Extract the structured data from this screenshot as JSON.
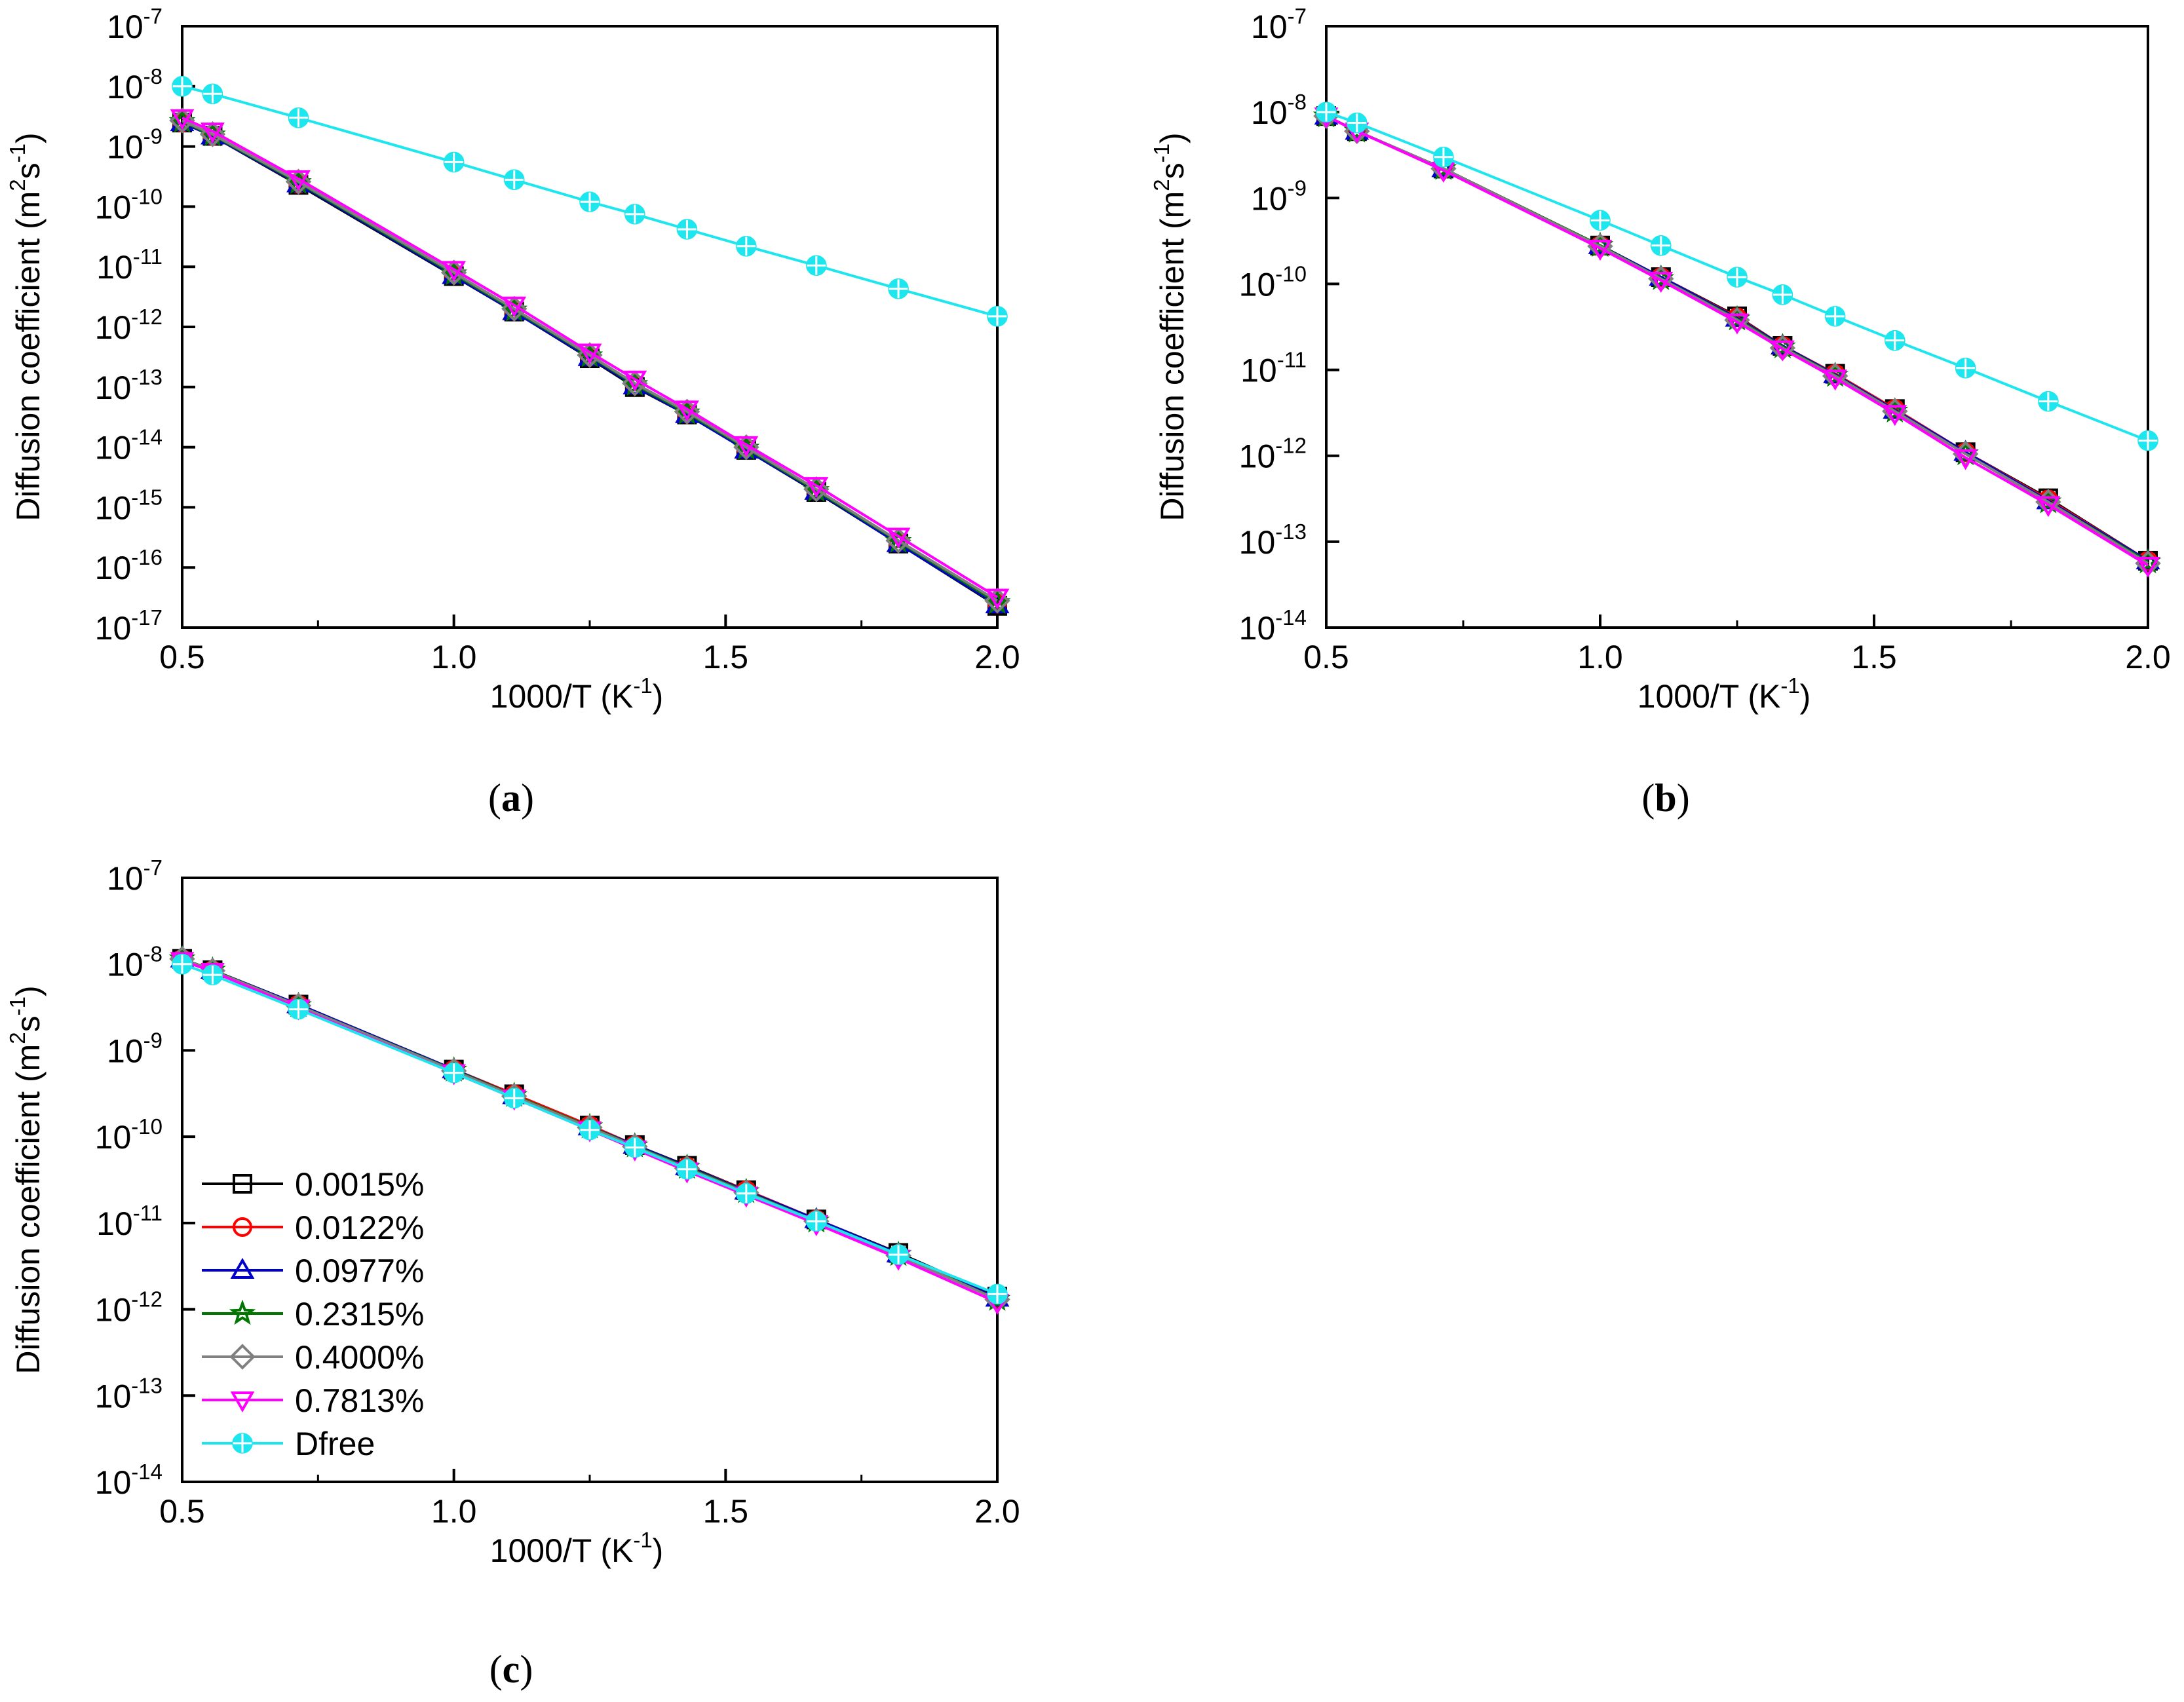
{
  "figure": {
    "legend_entries": [
      {
        "label": "0.0015%",
        "color": "#000000",
        "marker": "square"
      },
      {
        "label": "0.0122%",
        "color": "#ff0000",
        "marker": "circle"
      },
      {
        "label": "0.0977%",
        "color": "#0000cc",
        "marker": "triangle-up"
      },
      {
        "label": "0.2315%",
        "color": "#007700",
        "marker": "star"
      },
      {
        "label": "0.4000%",
        "color": "#808080",
        "marker": "diamond"
      },
      {
        "label": "0.7813%",
        "color": "#ff00ff",
        "marker": "triangle-down"
      },
      {
        "label": "Dfree",
        "color": "#1ee6ee",
        "marker": "crossed-circle"
      }
    ]
  },
  "chart_data": [
    {
      "type": "line",
      "panel_label": "a",
      "xlabel": "1000/T (K",
      "xlabel_sup": "-1",
      "xlabel_end": ")",
      "ylabel": "Diffusion coefficient (m",
      "ylabel_sup1": "2",
      "ylabel_mid": "s",
      "ylabel_sup2": "-1",
      "ylabel_end": ")",
      "xlim": [
        0.5,
        2.0
      ],
      "xticks": [
        "0.5",
        "1.0",
        "1.5",
        "2.0"
      ],
      "ylim_log10": [
        -17,
        -7
      ],
      "yscale": "log",
      "legend": false,
      "x": [
        0.5,
        0.556,
        0.714,
        1.0,
        1.111,
        1.25,
        1.333,
        1.429,
        1.538,
        1.667,
        1.818,
        2.0
      ],
      "series": [
        {
          "name": "0.0015%",
          "values": [
            2.5e-09,
            1.5e-09,
            2.3e-10,
            7e-12,
            1.8e-12,
            3e-13,
            1e-13,
            3.5e-14,
            9e-15,
            1.8e-15,
            2.5e-16,
            2.3e-17
          ]
        },
        {
          "name": "0.0122%",
          "values": [
            2.5e-09,
            1.5e-09,
            2.4e-10,
            7.5e-12,
            1.9e-12,
            3.2e-13,
            1.1e-13,
            3.6e-14,
            9.5e-15,
            1.9e-15,
            2.6e-16,
            2.5e-17
          ]
        },
        {
          "name": "0.0977%",
          "values": [
            2.5e-09,
            1.5e-09,
            2.4e-10,
            7.2e-12,
            1.8e-12,
            3.1e-13,
            1.05e-13,
            3.5e-14,
            9e-15,
            1.85e-15,
            2.5e-16,
            2.4e-17
          ]
        },
        {
          "name": "0.2315%",
          "values": [
            2.6e-09,
            1.55e-09,
            2.5e-10,
            7.6e-12,
            1.9e-12,
            3.3e-13,
            1.1e-13,
            3.7e-14,
            9.6e-15,
            1.9e-15,
            2.7e-16,
            2.6e-17
          ]
        },
        {
          "name": "0.4000%",
          "values": [
            2.7e-09,
            1.6e-09,
            2.6e-10,
            8e-12,
            2e-12,
            3.4e-13,
            1.15e-13,
            3.9e-14,
            1e-14,
            2e-15,
            2.8e-16,
            2.8e-17
          ]
        },
        {
          "name": "0.7813%",
          "values": [
            3e-09,
            1.8e-09,
            2.9e-10,
            9e-12,
            2.3e-12,
            3.8e-13,
            1.35e-13,
            4.3e-14,
            1.1e-14,
            2.3e-15,
            3.3e-16,
            3.2e-17
          ]
        },
        {
          "name": "Dfree",
          "values": [
            1e-08,
            7.5e-09,
            3e-09,
            5.5e-10,
            2.8e-10,
            1.2e-10,
            7.5e-11,
            4.2e-11,
            2.2e-11,
            1.05e-11,
            4.3e-12,
            1.5e-12
          ]
        }
      ]
    },
    {
      "type": "line",
      "panel_label": "b",
      "xlabel": "1000/T (K",
      "xlabel_sup": "-1",
      "xlabel_end": ")",
      "ylabel": "Diffusion coefficient (m",
      "ylabel_sup1": "2",
      "ylabel_mid": "s",
      "ylabel_sup2": "-1",
      "ylabel_end": ")",
      "xlim": [
        0.5,
        2.0
      ],
      "xticks": [
        "0.5",
        "1.0",
        "1.5",
        "2.0"
      ],
      "ylim_log10": [
        -14,
        -7
      ],
      "yscale": "log",
      "legend": false,
      "x": [
        0.5,
        0.556,
        0.714,
        1.0,
        1.111,
        1.25,
        1.333,
        1.429,
        1.538,
        1.667,
        1.818,
        2.0
      ],
      "series": [
        {
          "name": "0.0015%",
          "values": [
            9e-09,
            6e-09,
            2.2e-09,
            2.8e-10,
            1.2e-10,
            4.2e-11,
            1.9e-11,
            9e-12,
            3.5e-12,
            1.1e-12,
            3.2e-13,
            6e-14
          ]
        },
        {
          "name": "0.0122%",
          "values": [
            9e-09,
            6e-09,
            2.2e-09,
            2.8e-10,
            1.2e-10,
            4.1e-11,
            1.9e-11,
            9e-12,
            3.5e-12,
            1.1e-12,
            3.1e-13,
            6e-14
          ]
        },
        {
          "name": "0.0977%",
          "values": [
            9e-09,
            6e-09,
            2.2e-09,
            2.8e-10,
            1.2e-10,
            4e-11,
            1.9e-11,
            8.8e-12,
            3.4e-12,
            1.1e-12,
            3e-13,
            6e-14
          ]
        },
        {
          "name": "0.2315%",
          "values": [
            9e-09,
            6e-09,
            2.2e-09,
            2.8e-10,
            1.15e-10,
            3.9e-11,
            1.85e-11,
            8.6e-12,
            3.3e-12,
            1.05e-12,
            2.9e-13,
            5.8e-14
          ]
        },
        {
          "name": "0.4000%",
          "values": [
            9e-09,
            6e-09,
            2.2e-09,
            2.75e-10,
            1.15e-10,
            3.8e-11,
            1.8e-11,
            8.5e-12,
            3.3e-12,
            1.05e-12,
            2.9e-13,
            5.6e-14
          ]
        },
        {
          "name": "0.7813%",
          "values": [
            9e-09,
            6e-09,
            2.1e-09,
            2.6e-10,
            1.1e-10,
            3.6e-11,
            1.75e-11,
            8e-12,
            3.1e-12,
            9.5e-13,
            2.7e-13,
            5.3e-14
          ]
        },
        {
          "name": "Dfree",
          "values": [
            1e-08,
            7.5e-09,
            3e-09,
            5.5e-10,
            2.8e-10,
            1.2e-10,
            7.5e-11,
            4.2e-11,
            2.2e-11,
            1.05e-11,
            4.3e-12,
            1.5e-12
          ]
        }
      ]
    },
    {
      "type": "line",
      "panel_label": "c",
      "xlabel": "1000/T (K",
      "xlabel_sup": "-1",
      "xlabel_end": ")",
      "ylabel": "Diffusion coefficient (m",
      "ylabel_sup1": "2",
      "ylabel_mid": "s",
      "ylabel_sup2": "-1",
      "ylabel_end": ")",
      "xlim": [
        0.5,
        2.0
      ],
      "xticks": [
        "0.5",
        "1.0",
        "1.5",
        "2.0"
      ],
      "ylim_log10": [
        -14,
        -7
      ],
      "yscale": "log",
      "legend": true,
      "x": [
        0.5,
        0.556,
        0.714,
        1.0,
        1.111,
        1.25,
        1.333,
        1.429,
        1.538,
        1.667,
        1.818,
        2.0
      ],
      "series": [
        {
          "name": "0.0015%",
          "values": [
            1.15e-08,
            8.5e-09,
            3.4e-09,
            6e-10,
            3.1e-10,
            1.35e-10,
            8e-11,
            4.6e-11,
            2.4e-11,
            1.1e-11,
            4.5e-12,
            1.4e-12
          ]
        },
        {
          "name": "0.0122%",
          "values": [
            1.15e-08,
            8.5e-09,
            3.4e-09,
            6e-10,
            3.1e-10,
            1.35e-10,
            8e-11,
            4.5e-11,
            2.4e-11,
            1.1e-11,
            4.4e-12,
            1.35e-12
          ]
        },
        {
          "name": "0.0977%",
          "values": [
            1.15e-08,
            8.5e-09,
            3.4e-09,
            6e-10,
            3e-10,
            1.3e-10,
            8e-11,
            4.5e-11,
            2.35e-11,
            1.1e-11,
            4.4e-12,
            1.35e-12
          ]
        },
        {
          "name": "0.2315%",
          "values": [
            1.15e-08,
            8.5e-09,
            3.3e-09,
            5.9e-10,
            3e-10,
            1.3e-10,
            7.8e-11,
            4.4e-11,
            2.3e-11,
            1.05e-11,
            4.3e-12,
            1.3e-12
          ]
        },
        {
          "name": "0.4000%",
          "values": [
            1.15e-08,
            8.4e-09,
            3.3e-09,
            5.8e-10,
            2.95e-10,
            1.28e-10,
            7.7e-11,
            4.3e-11,
            2.25e-11,
            1.05e-11,
            4.2e-12,
            1.3e-12
          ]
        },
        {
          "name": "0.7813%",
          "values": [
            1.1e-08,
            8.2e-09,
            3.1e-09,
            5.5e-10,
            2.8e-10,
            1.2e-10,
            7.2e-11,
            4e-11,
            2.1e-11,
            9.8e-12,
            3.9e-12,
            1.2e-12
          ]
        },
        {
          "name": "Dfree",
          "values": [
            1e-08,
            7.5e-09,
            3e-09,
            5.5e-10,
            2.8e-10,
            1.2e-10,
            7.5e-11,
            4.2e-11,
            2.2e-11,
            1.05e-11,
            4.3e-12,
            1.5e-12
          ]
        }
      ]
    }
  ]
}
